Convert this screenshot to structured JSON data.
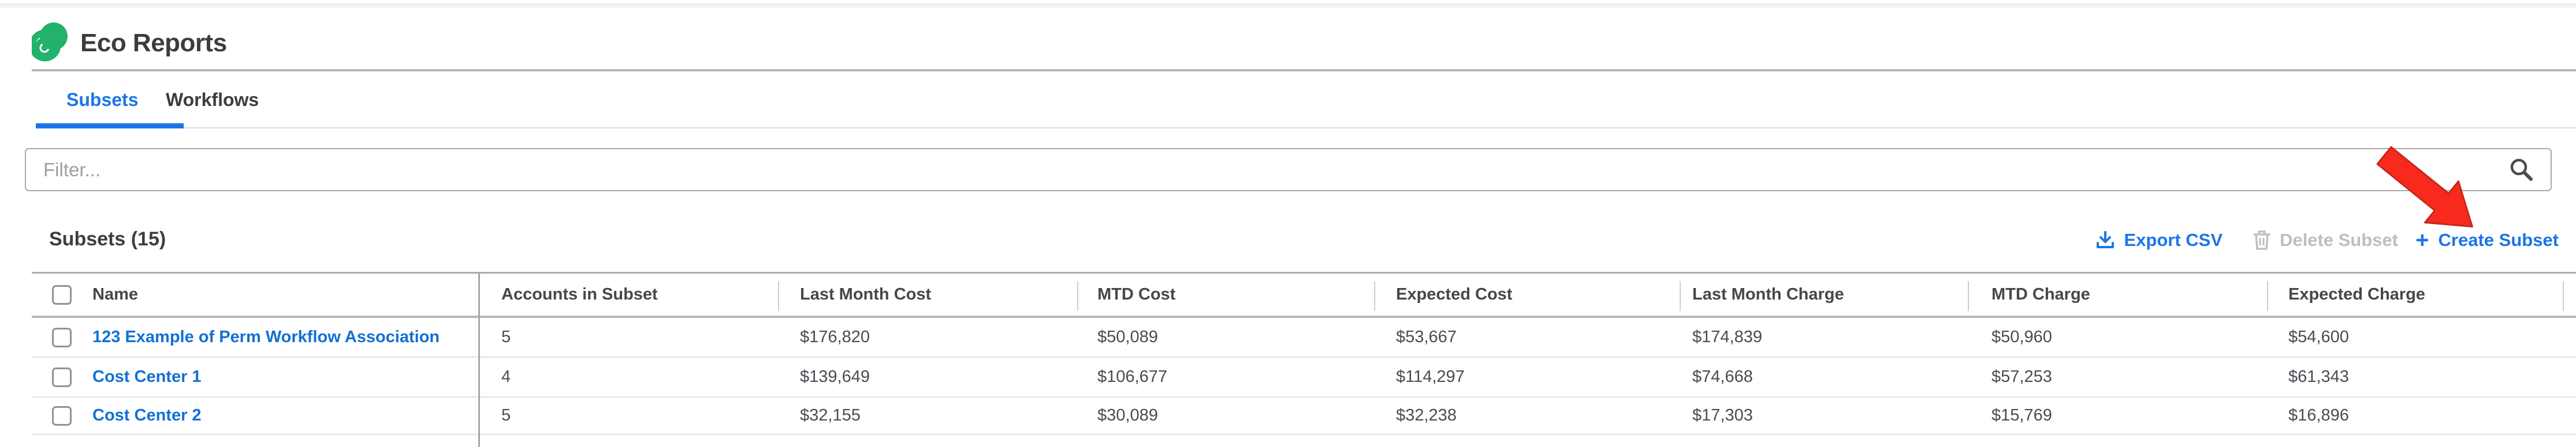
{
  "app": {
    "title": "Eco Reports"
  },
  "tabs": {
    "subsets": "Subsets",
    "workflows": "Workflows"
  },
  "filter": {
    "placeholder": "Filter..."
  },
  "section": {
    "title": "Subsets (15)"
  },
  "toolbar": {
    "export_csv": "Export CSV",
    "delete_subset": "Delete Subset",
    "create_prefix": "+",
    "create_subset": "Create Subset"
  },
  "table": {
    "columns": [
      "Name",
      "Accounts in Subset",
      "Last Month Cost",
      "MTD Cost",
      "Expected Cost",
      "Last Month Charge",
      "MTD Charge",
      "Expected Charge"
    ],
    "rows": [
      {
        "name": "123 Example of Perm Workflow Association",
        "accounts_in_subset": "5",
        "last_month_cost": "$176,820",
        "mtd_cost": "$50,089",
        "expected_cost": "$53,667",
        "last_month_charge": "$174,839",
        "mtd_charge": "$50,960",
        "expected_charge": "$54,600"
      },
      {
        "name": "Cost Center 1",
        "accounts_in_subset": "4",
        "last_month_cost": "$139,649",
        "mtd_cost": "$106,677",
        "expected_cost": "$114,297",
        "last_month_charge": "$74,668",
        "mtd_charge": "$57,253",
        "expected_charge": "$61,343"
      },
      {
        "name": "Cost Center 2",
        "accounts_in_subset": "5",
        "last_month_cost": "$32,155",
        "mtd_cost": "$30,089",
        "expected_cost": "$32,238",
        "last_month_charge": "$17,303",
        "mtd_charge": "$15,769",
        "expected_charge": "$16,896"
      }
    ]
  },
  "colors": {
    "accent_blue": "#1b75e8",
    "link_blue": "#1270d5",
    "disabled_gray": "#bcbfc2",
    "logo_green": "#21b26b",
    "arrow_red": "#f72a1d"
  }
}
